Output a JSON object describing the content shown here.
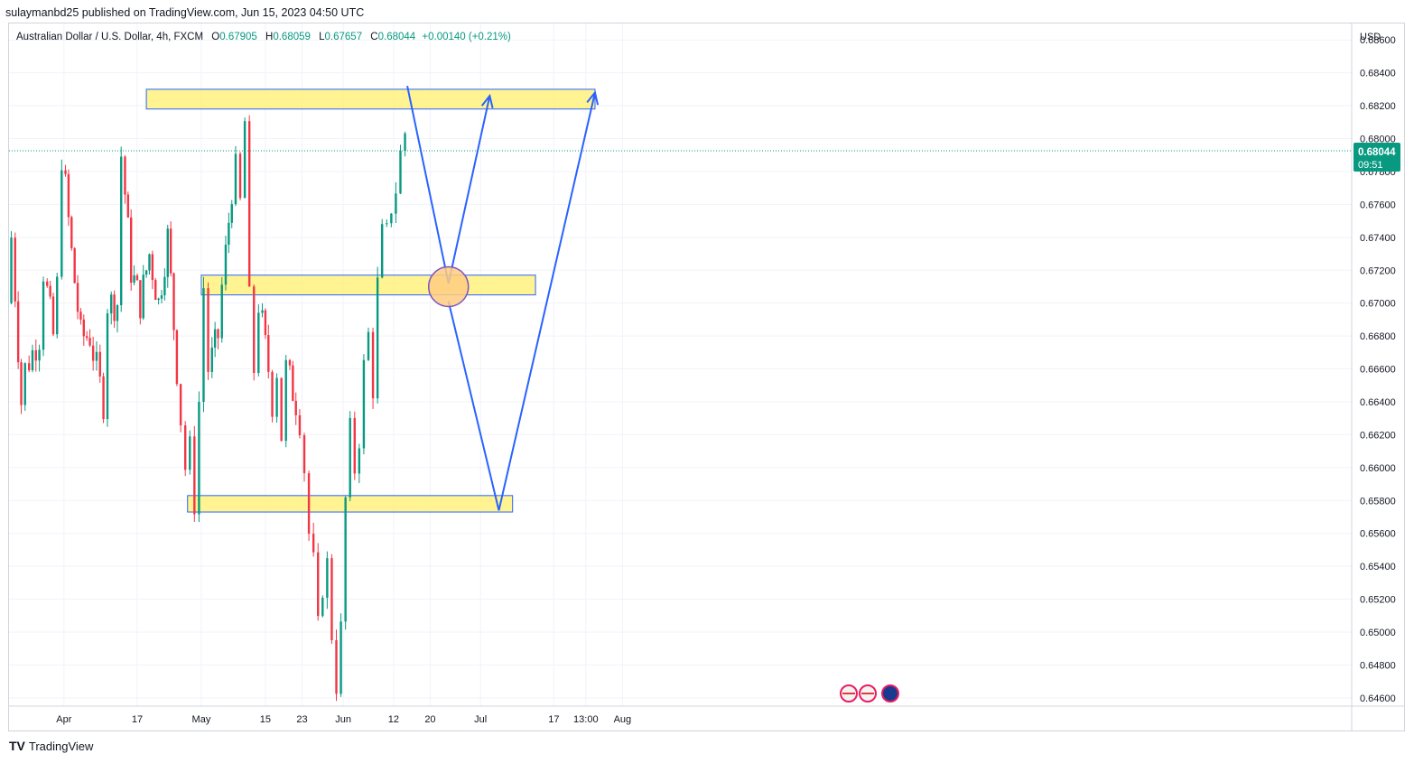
{
  "header": {
    "published_by": "sulaymanbd25 published on TradingView.com, Jun 15, 2023 04:50 UTC"
  },
  "legend": {
    "symbol": "Australian Dollar / U.S. Dollar, 4h, FXCM",
    "open_label": "O",
    "open": "0.67905",
    "high_label": "H",
    "high": "0.68059",
    "low_label": "L",
    "low": "0.67657",
    "close_label": "C",
    "close": "0.68044",
    "change": "+0.00140 (+0.21%)"
  },
  "price_axis": {
    "currency": "USD",
    "ticks": [
      "0.68600",
      "0.68400",
      "0.68200",
      "0.68000",
      "0.67800",
      "0.67600",
      "0.67400",
      "0.67200",
      "0.67000",
      "0.66800",
      "0.66600",
      "0.66400",
      "0.66200",
      "0.66000",
      "0.65800",
      "0.65600",
      "0.65400",
      "0.65200",
      "0.65000",
      "0.64800",
      "0.64600"
    ],
    "current_price": "0.68044",
    "countdown": "09:51"
  },
  "time_axis": {
    "ticks": [
      "Apr",
      "17",
      "May",
      "15",
      "23",
      "Jun",
      "12",
      "20",
      "Jul",
      "17",
      "13:00",
      "Aug"
    ]
  },
  "footer": {
    "brand": "TradingView",
    "logo_text": "TV"
  },
  "colors": {
    "up": "#089981",
    "down": "#f23645",
    "zone_fill": "#fff176",
    "zone_border": "#2962ff",
    "projection": "#2962ff",
    "circle_fill": "#ffcc80",
    "price_label_bg": "#089981"
  },
  "chart_data": {
    "type": "candlestick",
    "timeframe": "4h",
    "ylim": [
      0.6455,
      0.687
    ],
    "grid": true,
    "zones": [
      {
        "from": 0.6818,
        "to": 0.683,
        "start": "Apr 19",
        "end": "Jul 26"
      },
      {
        "from": 0.6705,
        "to": 0.6717,
        "start": "May 1",
        "end": "Jul 13"
      },
      {
        "from": 0.6573,
        "to": 0.6583,
        "start": "Apr 28",
        "end": "Jul 8"
      }
    ],
    "projection_path": [
      {
        "date": "Jun 15",
        "price": 0.6832
      },
      {
        "date": "Jun 24",
        "price": 0.6712
      },
      {
        "date": "Jul 3",
        "price": 0.6826
      }
    ],
    "projection_path_2": [
      {
        "date": "Jun 24",
        "price": 0.6701
      },
      {
        "date": "Jul 5",
        "price": 0.6574
      },
      {
        "date": "Jul 26",
        "price": 0.6828
      }
    ],
    "circle": {
      "date": "Jun 24",
      "price": 0.671
    },
    "path": [
      {
        "date": "Mar 20",
        "price": 0.67
      },
      {
        "date": "Mar 21",
        "price": 0.674
      },
      {
        "date": "Mar 23",
        "price": 0.664
      },
      {
        "date": "Mar 24",
        "price": 0.666
      },
      {
        "date": "Mar 27",
        "price": 0.668
      },
      {
        "date": "Mar 28",
        "price": 0.672
      },
      {
        "date": "Mar 30",
        "price": 0.668
      },
      {
        "date": "Mar 31",
        "price": 0.671
      },
      {
        "date": "Apr 1",
        "price": 0.679
      },
      {
        "date": "Apr 3",
        "price": 0.673
      },
      {
        "date": "Apr 5",
        "price": 0.668
      },
      {
        "date": "Apr 7",
        "price": 0.668
      },
      {
        "date": "Apr 10",
        "price": 0.664
      },
      {
        "date": "Apr 11",
        "price": 0.67
      },
      {
        "date": "Apr 13",
        "price": 0.67
      },
      {
        "date": "Apr 14",
        "price": 0.679
      },
      {
        "date": "Apr 16",
        "price": 0.672
      },
      {
        "date": "Apr 18",
        "price": 0.67
      },
      {
        "date": "Apr 20",
        "price": 0.673
      },
      {
        "date": "Apr 22",
        "price": 0.67
      },
      {
        "date": "Apr 24",
        "price": 0.674
      },
      {
        "date": "Apr 26",
        "price": 0.666
      },
      {
        "date": "Apr 27",
        "price": 0.663
      },
      {
        "date": "Apr 28",
        "price": 0.66
      },
      {
        "date": "Apr 29",
        "price": 0.661
      },
      {
        "date": "Apr 30",
        "price": 0.658
      },
      {
        "date": "May 1",
        "price": 0.664
      },
      {
        "date": "May 2",
        "price": 0.671
      },
      {
        "date": "May 3",
        "price": 0.666
      },
      {
        "date": "May 5",
        "price": 0.668
      },
      {
        "date": "May 6",
        "price": 0.671
      },
      {
        "date": "May 8",
        "price": 0.677
      },
      {
        "date": "May 9",
        "price": 0.678
      },
      {
        "date": "May 10",
        "price": 0.676
      },
      {
        "date": "May 11",
        "price": 0.681
      },
      {
        "date": "May 12",
        "price": 0.67
      },
      {
        "date": "May 13",
        "price": 0.666
      },
      {
        "date": "May 14",
        "price": 0.67
      },
      {
        "date": "May 16",
        "price": 0.666
      },
      {
        "date": "May 17",
        "price": 0.664
      },
      {
        "date": "May 18",
        "price": 0.666
      },
      {
        "date": "May 19",
        "price": 0.662
      },
      {
        "date": "May 20",
        "price": 0.666
      },
      {
        "date": "May 22",
        "price": 0.664
      },
      {
        "date": "May 23",
        "price": 0.663
      },
      {
        "date": "May 24",
        "price": 0.66
      },
      {
        "date": "May 25",
        "price": 0.656
      },
      {
        "date": "May 26",
        "price": 0.654
      },
      {
        "date": "May 27",
        "price": 0.65
      },
      {
        "date": "May 28",
        "price": 0.653
      },
      {
        "date": "May 29",
        "price": 0.654
      },
      {
        "date": "May 30",
        "price": 0.65
      },
      {
        "date": "May 31",
        "price": 0.647
      },
      {
        "date": "Jun 1",
        "price": 0.65
      },
      {
        "date": "Jun 2",
        "price": 0.658
      },
      {
        "date": "Jun 3",
        "price": 0.662
      },
      {
        "date": "Jun 4",
        "price": 0.66
      },
      {
        "date": "Jun 5",
        "price": 0.662
      },
      {
        "date": "Jun 6",
        "price": 0.666
      },
      {
        "date": "Jun 7",
        "price": 0.668
      },
      {
        "date": "Jun 8",
        "price": 0.665
      },
      {
        "date": "Jun 9",
        "price": 0.671
      },
      {
        "date": "Jun 10",
        "price": 0.674
      },
      {
        "date": "Jun 11",
        "price": 0.674
      },
      {
        "date": "Jun 12",
        "price": 0.676
      },
      {
        "date": "Jun 13",
        "price": 0.677
      },
      {
        "date": "Jun 14",
        "price": 0.679
      },
      {
        "date": "Jun 15",
        "price": 0.6804
      }
    ]
  }
}
